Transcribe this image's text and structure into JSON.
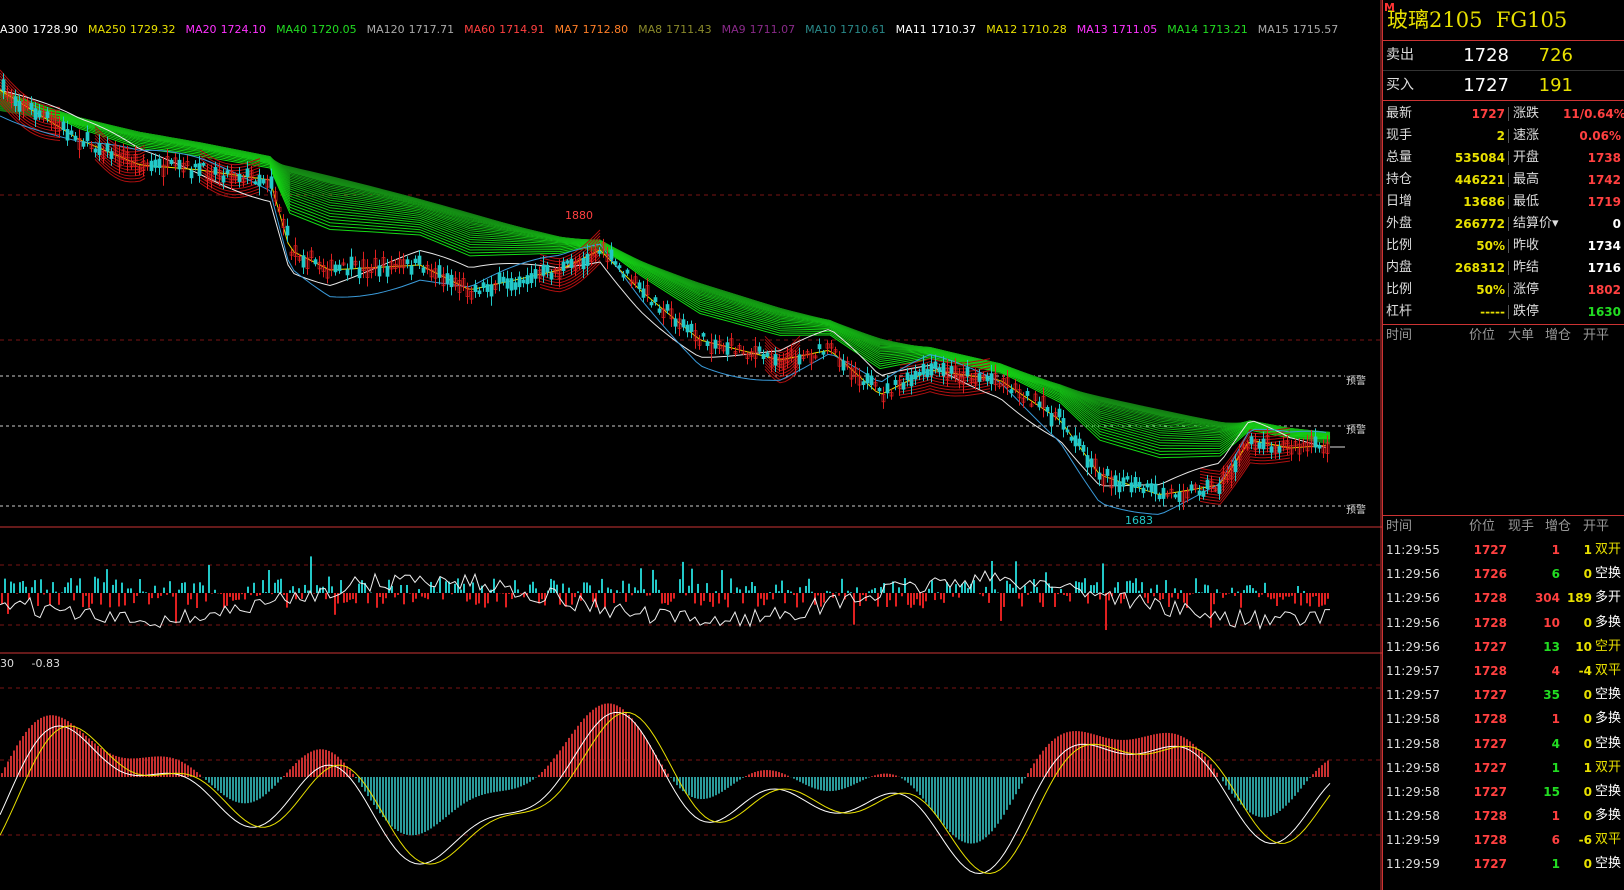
{
  "legend": [
    {
      "label": "A300",
      "value": "1728.90",
      "color": "#ffffff"
    },
    {
      "label": "MA250",
      "value": "1729.32",
      "color": "#e8e000"
    },
    {
      "label": "MA20",
      "value": "1724.10",
      "color": "#ff33ff"
    },
    {
      "label": "MA40",
      "value": "1720.05",
      "color": "#22dd22"
    },
    {
      "label": "MA120",
      "value": "1717.71",
      "color": "#aaaaaa"
    },
    {
      "label": "MA60",
      "value": "1714.91",
      "color": "#ff4040"
    },
    {
      "label": "MA7",
      "value": "1712.80",
      "color": "#ff7f27"
    },
    {
      "label": "MA8",
      "value": "1711.43",
      "color": "#8a8a2a"
    },
    {
      "label": "MA9",
      "value": "1711.07",
      "color": "#8a2a8a"
    },
    {
      "label": "MA10",
      "value": "1710.61",
      "color": "#2a8a8a"
    },
    {
      "label": "MA11",
      "value": "1710.37",
      "color": "#ffffff"
    },
    {
      "label": "MA12",
      "value": "1710.28",
      "color": "#e8e000"
    },
    {
      "label": "MA13",
      "value": "1711.05",
      "color": "#ff33ff"
    },
    {
      "label": "MA14",
      "value": "1713.21",
      "color": "#22dd22"
    },
    {
      "label": "MA15",
      "value": "1715.57",
      "color": "#aaaaaa"
    }
  ],
  "sub2": {
    "label1": "30",
    "label2": "-0.83"
  },
  "price_labels": {
    "high": "1880",
    "low": "1683"
  },
  "warn_label": "预警",
  "instrument": {
    "name": "玻璃2105",
    "code": "FG105",
    "m_icon": "M"
  },
  "ask": {
    "label": "卖出",
    "price": "1728",
    "volume": "726"
  },
  "bid": {
    "label": "买入",
    "price": "1727",
    "volume": "191"
  },
  "stats": [
    {
      "l1": "最新",
      "v1": "1727",
      "c1": "c-red",
      "l2": "涨跌",
      "v2": "11/0.64%",
      "c2": "c-red"
    },
    {
      "l1": "现手",
      "v1": "2",
      "c1": "c-yellow",
      "l2": "速涨",
      "v2": "0.06%",
      "c2": "c-red"
    },
    {
      "l1": "总量",
      "v1": "535084",
      "c1": "c-yellow",
      "l2": "开盘",
      "v2": "1738",
      "c2": "c-red"
    },
    {
      "l1": "持仓",
      "v1": "446221",
      "c1": "c-yellow",
      "l2": "最高",
      "v2": "1742",
      "c2": "c-red"
    },
    {
      "l1": "日增",
      "v1": "13686",
      "c1": "c-yellow",
      "l2": "最低",
      "v2": "1719",
      "c2": "c-red"
    },
    {
      "l1": "外盘",
      "v1": "266772",
      "c1": "c-yellow",
      "l2": "结算价▾",
      "v2": "0",
      "c2": "c-white"
    },
    {
      "l1": "比例",
      "v1": "50%",
      "c1": "c-yellow",
      "l2": "昨收",
      "v2": "1734",
      "c2": "c-white"
    },
    {
      "l1": "内盘",
      "v1": "268312",
      "c1": "c-yellow",
      "l2": "昨结",
      "v2": "1716",
      "c2": "c-white"
    },
    {
      "l1": "比例",
      "v1": "50%",
      "c1": "c-yellow",
      "l2": "涨停",
      "v2": "1802",
      "c2": "c-red"
    },
    {
      "l1": "杠杆",
      "v1": "-----",
      "c1": "c-yellow",
      "l2": "跌停",
      "v2": "1630",
      "c2": "c-green"
    }
  ],
  "big_order_header": {
    "time": "时间",
    "price": "价位",
    "big": "大单",
    "inc": "增仓",
    "open": "开平"
  },
  "ticks_header": {
    "time": "时间",
    "price": "价位",
    "hand": "现手",
    "inc": "增仓",
    "open": "开平"
  },
  "ticks": [
    {
      "time": "11:29:55",
      "price": "1727",
      "hand": "1",
      "inc": "1",
      "type": "双开",
      "pc": "c-red",
      "hc": "c-red",
      "tc": "c-yellow"
    },
    {
      "time": "11:29:56",
      "price": "1726",
      "hand": "6",
      "inc": "0",
      "type": "空换",
      "pc": "c-red",
      "hc": "c-green",
      "tc": "c-white"
    },
    {
      "time": "11:29:56",
      "price": "1728",
      "hand": "304",
      "inc": "189",
      "type": "多开",
      "pc": "c-red",
      "hc": "c-red",
      "tc": "c-white"
    },
    {
      "time": "11:29:56",
      "price": "1728",
      "hand": "10",
      "inc": "0",
      "type": "多换",
      "pc": "c-red",
      "hc": "c-red",
      "tc": "c-white"
    },
    {
      "time": "11:29:56",
      "price": "1727",
      "hand": "13",
      "inc": "10",
      "type": "空开",
      "pc": "c-red",
      "hc": "c-green",
      "tc": "c-yellow"
    },
    {
      "time": "11:29:57",
      "price": "1728",
      "hand": "4",
      "inc": "-4",
      "type": "双平",
      "pc": "c-red",
      "hc": "c-red",
      "tc": "c-yellow"
    },
    {
      "time": "11:29:57",
      "price": "1727",
      "hand": "35",
      "inc": "0",
      "type": "空换",
      "pc": "c-red",
      "hc": "c-green",
      "tc": "c-white"
    },
    {
      "time": "11:29:58",
      "price": "1728",
      "hand": "1",
      "inc": "0",
      "type": "多换",
      "pc": "c-red",
      "hc": "c-red",
      "tc": "c-white"
    },
    {
      "time": "11:29:58",
      "price": "1727",
      "hand": "4",
      "inc": "0",
      "type": "空换",
      "pc": "c-red",
      "hc": "c-green",
      "tc": "c-white"
    },
    {
      "time": "11:29:58",
      "price": "1727",
      "hand": "1",
      "inc": "1",
      "type": "双开",
      "pc": "c-red",
      "hc": "c-green",
      "tc": "c-yellow"
    },
    {
      "time": "11:29:58",
      "price": "1727",
      "hand": "15",
      "inc": "0",
      "type": "空换",
      "pc": "c-red",
      "hc": "c-green",
      "tc": "c-white"
    },
    {
      "time": "11:29:58",
      "price": "1728",
      "hand": "1",
      "inc": "0",
      "type": "多换",
      "pc": "c-red",
      "hc": "c-red",
      "tc": "c-white"
    },
    {
      "time": "11:29:59",
      "price": "1728",
      "hand": "6",
      "inc": "-6",
      "type": "双平",
      "pc": "c-red",
      "hc": "c-red",
      "tc": "c-yellow"
    },
    {
      "time": "11:29:59",
      "price": "1727",
      "hand": "1",
      "inc": "0",
      "type": "空换",
      "pc": "c-red",
      "hc": "c-green",
      "tc": "c-white"
    }
  ]
}
